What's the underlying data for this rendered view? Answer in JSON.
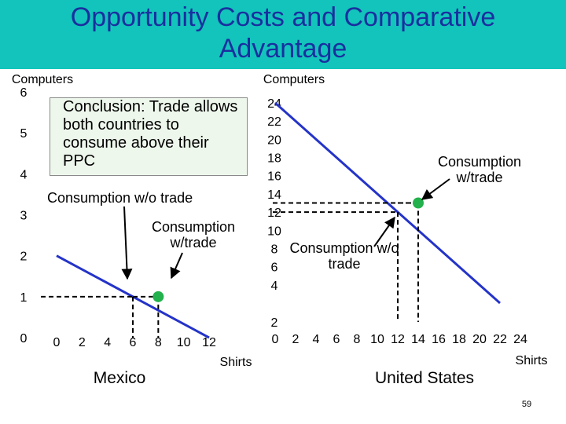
{
  "slide": {
    "title": "Opportunity Costs and Comparative Advantage",
    "page_number": "59",
    "conclusion": "Conclusion: Trade allows both countries to consume above their PPC",
    "colors": {
      "header": "#12c4bb",
      "title": "#1a2fa0",
      "ppc_line": "#2433c8",
      "point": "#22b14c",
      "box": "#eef7ec"
    }
  },
  "chart_data": [
    {
      "type": "line",
      "name": "Mexico",
      "title": "Mexico",
      "xlabel": "Shirts",
      "ylabel": "Computers",
      "xlim": [
        0,
        12
      ],
      "ylim": [
        0,
        6
      ],
      "x_ticks": [
        "0",
        "2",
        "4",
        "6",
        "8",
        "10",
        "12"
      ],
      "y_ticks": [
        "0",
        "1",
        "2",
        "3",
        "4",
        "5",
        "6"
      ],
      "ppc": [
        [
          0,
          2
        ],
        [
          12,
          0
        ]
      ],
      "point_without_trade": {
        "label": "Consumption w/o trade",
        "x": 6,
        "y": 1
      },
      "point_with_trade": {
        "label": "Consumption w/trade",
        "x": 8,
        "y": 1
      }
    },
    {
      "type": "line",
      "name": "United States",
      "title": "United States",
      "xlabel": "Shirts",
      "ylabel": "Computers",
      "xlim": [
        0,
        24
      ],
      "ylim": [
        2,
        24
      ],
      "x_ticks": [
        "0",
        "2",
        "4",
        "6",
        "8",
        "10",
        "12",
        "14",
        "16",
        "18",
        "20",
        "22",
        "24"
      ],
      "y_ticks": [
        "2",
        "4",
        "6",
        "8",
        "10",
        "12",
        "14",
        "16",
        "18",
        "20",
        "22",
        "24"
      ],
      "ppc": [
        [
          0,
          24
        ],
        [
          24,
          0
        ]
      ],
      "point_without_trade": {
        "label": "Consumption w/o trade",
        "x": 12,
        "y": 12
      },
      "point_with_trade": {
        "label": "Consumption w/trade",
        "x": 14,
        "y": 13
      }
    }
  ]
}
